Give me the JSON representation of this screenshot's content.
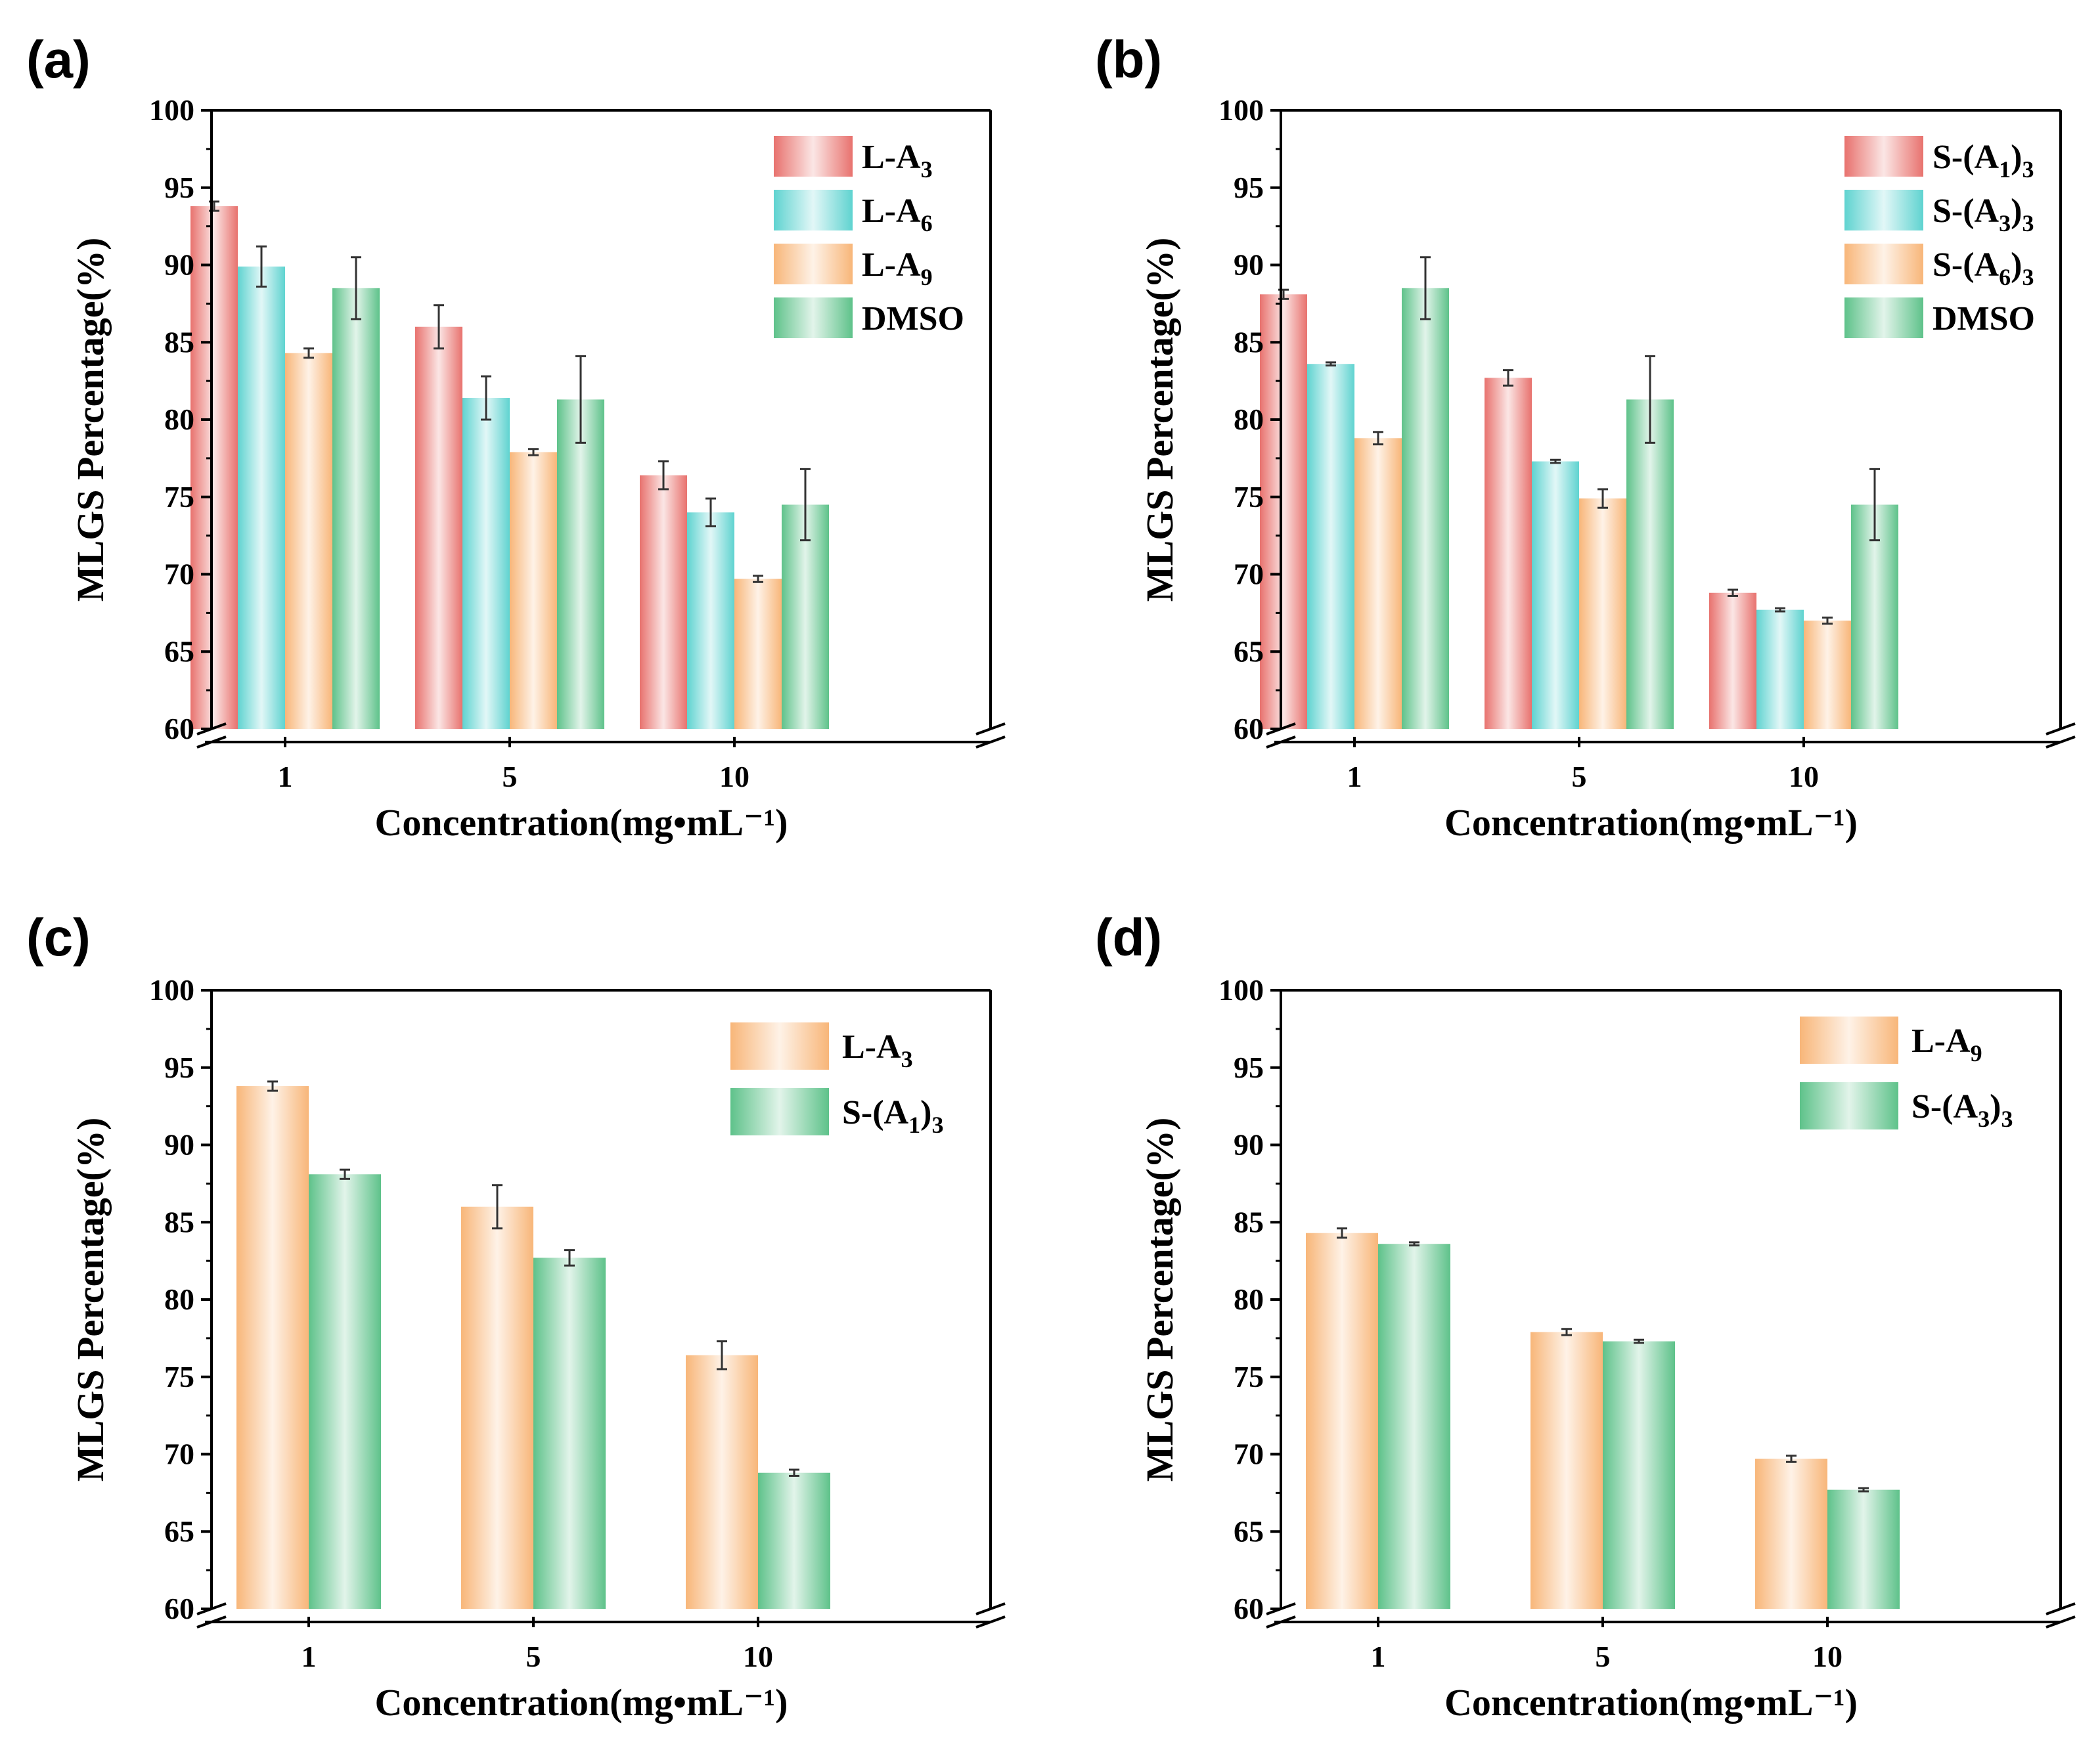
{
  "figure": {
    "panels": [
      {
        "id": "a",
        "panel_label": "(a)",
        "chart_data": {
          "type": "bar",
          "title": "",
          "xlabel": "Concentration(mg•mL⁻¹)",
          "ylabel": "MLGS Percentage(%)",
          "ylim": [
            60,
            100
          ],
          "yticks": [
            60,
            65,
            70,
            75,
            80,
            85,
            90,
            95,
            100
          ],
          "categories": [
            "1",
            "5",
            "10"
          ],
          "legend_position": "top-right",
          "series": [
            {
              "name": "L-A3",
              "label_main": "L-A",
              "label_sub": "3",
              "label_tail": "",
              "color": "#e8726e",
              "values": [
                93.8,
                86.0,
                76.4
              ],
              "errors": [
                0.3,
                1.4,
                0.9
              ]
            },
            {
              "name": "L-A6",
              "label_main": "L-A",
              "label_sub": "6",
              "label_tail": "",
              "color": "#5fd3d0",
              "values": [
                89.9,
                81.4,
                74.0
              ],
              "errors": [
                1.3,
                1.4,
                0.9
              ]
            },
            {
              "name": "L-A9",
              "label_main": "L-A",
              "label_sub": "9",
              "label_tail": "",
              "color": "#f8b679",
              "values": [
                84.3,
                77.9,
                69.7
              ],
              "errors": [
                0.3,
                0.2,
                0.2
              ]
            },
            {
              "name": "DMSO",
              "label_main": "DMSO",
              "label_sub": "",
              "label_tail": "",
              "color": "#5ec28a",
              "values": [
                88.5,
                81.3,
                74.5
              ],
              "errors": [
                2.0,
                2.8,
                2.3
              ]
            }
          ]
        }
      },
      {
        "id": "b",
        "panel_label": "(b)",
        "chart_data": {
          "type": "bar",
          "title": "",
          "xlabel": "Concentration(mg•mL⁻¹)",
          "ylabel": "MLGS Percentage(%)",
          "ylim": [
            60,
            100
          ],
          "yticks": [
            60,
            65,
            70,
            75,
            80,
            85,
            90,
            95,
            100
          ],
          "categories": [
            "1",
            "5",
            "10"
          ],
          "legend_position": "top-right",
          "series": [
            {
              "name": "S-(A1)3",
              "label_main": "S-(A",
              "label_sub": "1",
              "label_tail": ")3",
              "color": "#e8726e",
              "values": [
                88.1,
                82.7,
                68.8
              ],
              "errors": [
                0.3,
                0.5,
                0.2
              ]
            },
            {
              "name": "S-(A3)3",
              "label_main": "S-(A",
              "label_sub": "3",
              "label_tail": ")3",
              "color": "#5fd3d0",
              "values": [
                83.6,
                77.3,
                67.7
              ],
              "errors": [
                0.1,
                0.1,
                0.1
              ]
            },
            {
              "name": "S-(A6)3",
              "label_main": "S-(A",
              "label_sub": "6",
              "label_tail": ")3",
              "color": "#f8b679",
              "values": [
                78.8,
                74.9,
                67.0
              ],
              "errors": [
                0.4,
                0.6,
                0.2
              ]
            },
            {
              "name": "DMSO",
              "label_main": "DMSO",
              "label_sub": "",
              "label_tail": "",
              "color": "#5ec28a",
              "values": [
                88.5,
                81.3,
                74.5
              ],
              "errors": [
                2.0,
                2.8,
                2.3
              ]
            }
          ]
        }
      },
      {
        "id": "c",
        "panel_label": "(c)",
        "chart_data": {
          "type": "bar",
          "title": "",
          "xlabel": "Concentration(mg•mL⁻¹)",
          "ylabel": "MLGS Percentage(%)",
          "ylim": [
            60,
            100
          ],
          "yticks": [
            60,
            65,
            70,
            75,
            80,
            85,
            90,
            95,
            100
          ],
          "categories": [
            "1",
            "5",
            "10"
          ],
          "legend_position": "top-right",
          "series": [
            {
              "name": "L-A3",
              "label_main": "L-A",
              "label_sub": "3",
              "label_tail": "",
              "color": "#f8b679",
              "values": [
                93.8,
                86.0,
                76.4
              ],
              "errors": [
                0.3,
                1.4,
                0.9
              ]
            },
            {
              "name": "S-(A1)3",
              "label_main": "S-(A",
              "label_sub": "1",
              "label_tail": ")3",
              "color": "#5ec28a",
              "values": [
                88.1,
                82.7,
                68.8
              ],
              "errors": [
                0.3,
                0.5,
                0.2
              ]
            }
          ]
        }
      },
      {
        "id": "d",
        "panel_label": "(d)",
        "chart_data": {
          "type": "bar",
          "title": "",
          "xlabel": "Concentration(mg•mL⁻¹)",
          "ylabel": "MLGS Percentage(%)",
          "ylim": [
            60,
            100
          ],
          "yticks": [
            60,
            65,
            70,
            75,
            80,
            85,
            90,
            95,
            100
          ],
          "categories": [
            "1",
            "5",
            "10"
          ],
          "legend_position": "top-right",
          "series": [
            {
              "name": "L-A9",
              "label_main": "L-A",
              "label_sub": "9",
              "label_tail": "",
              "color": "#f8b679",
              "values": [
                84.3,
                77.9,
                69.7
              ],
              "errors": [
                0.3,
                0.2,
                0.2
              ]
            },
            {
              "name": "S-(A3)3",
              "label_main": "S-(A",
              "label_sub": "3",
              "label_tail": ")3",
              "color": "#5ec28a",
              "values": [
                83.6,
                77.3,
                67.7
              ],
              "errors": [
                0.1,
                0.1,
                0.1
              ]
            }
          ]
        }
      }
    ]
  }
}
